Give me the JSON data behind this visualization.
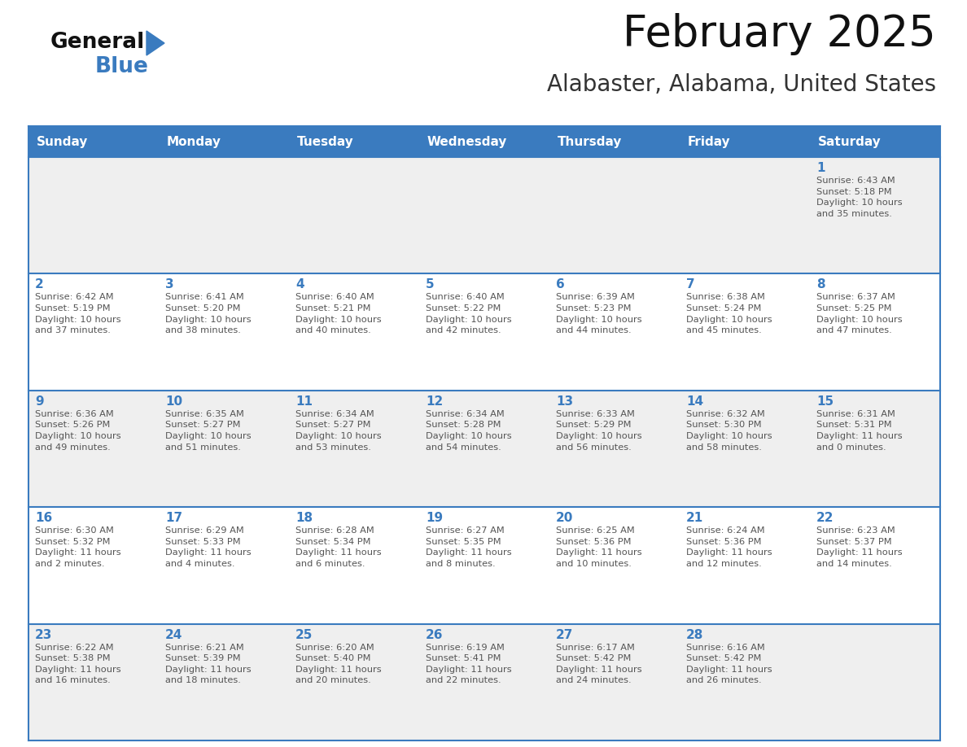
{
  "title": "February 2025",
  "subtitle": "Alabaster, Alabama, United States",
  "header_bg": "#3a7bbf",
  "header_text_color": "#ffffff",
  "cell_bg_odd": "#efefef",
  "cell_bg_even": "#ffffff",
  "border_color": "#3a7bbf",
  "day_number_color": "#3a7bbf",
  "info_text_color": "#555555",
  "title_color": "#111111",
  "subtitle_color": "#333333",
  "days_of_week": [
    "Sunday",
    "Monday",
    "Tuesday",
    "Wednesday",
    "Thursday",
    "Friday",
    "Saturday"
  ],
  "weeks": [
    [
      {
        "day": null,
        "info": null
      },
      {
        "day": null,
        "info": null
      },
      {
        "day": null,
        "info": null
      },
      {
        "day": null,
        "info": null
      },
      {
        "day": null,
        "info": null
      },
      {
        "day": null,
        "info": null
      },
      {
        "day": "1",
        "info": "Sunrise: 6:43 AM\nSunset: 5:18 PM\nDaylight: 10 hours\nand 35 minutes."
      }
    ],
    [
      {
        "day": "2",
        "info": "Sunrise: 6:42 AM\nSunset: 5:19 PM\nDaylight: 10 hours\nand 37 minutes."
      },
      {
        "day": "3",
        "info": "Sunrise: 6:41 AM\nSunset: 5:20 PM\nDaylight: 10 hours\nand 38 minutes."
      },
      {
        "day": "4",
        "info": "Sunrise: 6:40 AM\nSunset: 5:21 PM\nDaylight: 10 hours\nand 40 minutes."
      },
      {
        "day": "5",
        "info": "Sunrise: 6:40 AM\nSunset: 5:22 PM\nDaylight: 10 hours\nand 42 minutes."
      },
      {
        "day": "6",
        "info": "Sunrise: 6:39 AM\nSunset: 5:23 PM\nDaylight: 10 hours\nand 44 minutes."
      },
      {
        "day": "7",
        "info": "Sunrise: 6:38 AM\nSunset: 5:24 PM\nDaylight: 10 hours\nand 45 minutes."
      },
      {
        "day": "8",
        "info": "Sunrise: 6:37 AM\nSunset: 5:25 PM\nDaylight: 10 hours\nand 47 minutes."
      }
    ],
    [
      {
        "day": "9",
        "info": "Sunrise: 6:36 AM\nSunset: 5:26 PM\nDaylight: 10 hours\nand 49 minutes."
      },
      {
        "day": "10",
        "info": "Sunrise: 6:35 AM\nSunset: 5:27 PM\nDaylight: 10 hours\nand 51 minutes."
      },
      {
        "day": "11",
        "info": "Sunrise: 6:34 AM\nSunset: 5:27 PM\nDaylight: 10 hours\nand 53 minutes."
      },
      {
        "day": "12",
        "info": "Sunrise: 6:34 AM\nSunset: 5:28 PM\nDaylight: 10 hours\nand 54 minutes."
      },
      {
        "day": "13",
        "info": "Sunrise: 6:33 AM\nSunset: 5:29 PM\nDaylight: 10 hours\nand 56 minutes."
      },
      {
        "day": "14",
        "info": "Sunrise: 6:32 AM\nSunset: 5:30 PM\nDaylight: 10 hours\nand 58 minutes."
      },
      {
        "day": "15",
        "info": "Sunrise: 6:31 AM\nSunset: 5:31 PM\nDaylight: 11 hours\nand 0 minutes."
      }
    ],
    [
      {
        "day": "16",
        "info": "Sunrise: 6:30 AM\nSunset: 5:32 PM\nDaylight: 11 hours\nand 2 minutes."
      },
      {
        "day": "17",
        "info": "Sunrise: 6:29 AM\nSunset: 5:33 PM\nDaylight: 11 hours\nand 4 minutes."
      },
      {
        "day": "18",
        "info": "Sunrise: 6:28 AM\nSunset: 5:34 PM\nDaylight: 11 hours\nand 6 minutes."
      },
      {
        "day": "19",
        "info": "Sunrise: 6:27 AM\nSunset: 5:35 PM\nDaylight: 11 hours\nand 8 minutes."
      },
      {
        "day": "20",
        "info": "Sunrise: 6:25 AM\nSunset: 5:36 PM\nDaylight: 11 hours\nand 10 minutes."
      },
      {
        "day": "21",
        "info": "Sunrise: 6:24 AM\nSunset: 5:36 PM\nDaylight: 11 hours\nand 12 minutes."
      },
      {
        "day": "22",
        "info": "Sunrise: 6:23 AM\nSunset: 5:37 PM\nDaylight: 11 hours\nand 14 minutes."
      }
    ],
    [
      {
        "day": "23",
        "info": "Sunrise: 6:22 AM\nSunset: 5:38 PM\nDaylight: 11 hours\nand 16 minutes."
      },
      {
        "day": "24",
        "info": "Sunrise: 6:21 AM\nSunset: 5:39 PM\nDaylight: 11 hours\nand 18 minutes."
      },
      {
        "day": "25",
        "info": "Sunrise: 6:20 AM\nSunset: 5:40 PM\nDaylight: 11 hours\nand 20 minutes."
      },
      {
        "day": "26",
        "info": "Sunrise: 6:19 AM\nSunset: 5:41 PM\nDaylight: 11 hours\nand 22 minutes."
      },
      {
        "day": "27",
        "info": "Sunrise: 6:17 AM\nSunset: 5:42 PM\nDaylight: 11 hours\nand 24 minutes."
      },
      {
        "day": "28",
        "info": "Sunrise: 6:16 AM\nSunset: 5:42 PM\nDaylight: 11 hours\nand 26 minutes."
      },
      {
        "day": null,
        "info": null
      }
    ]
  ],
  "logo_triangle_color": "#3a7bbf",
  "logo_general_color": "#111111",
  "logo_blue_color": "#3a7bbf"
}
